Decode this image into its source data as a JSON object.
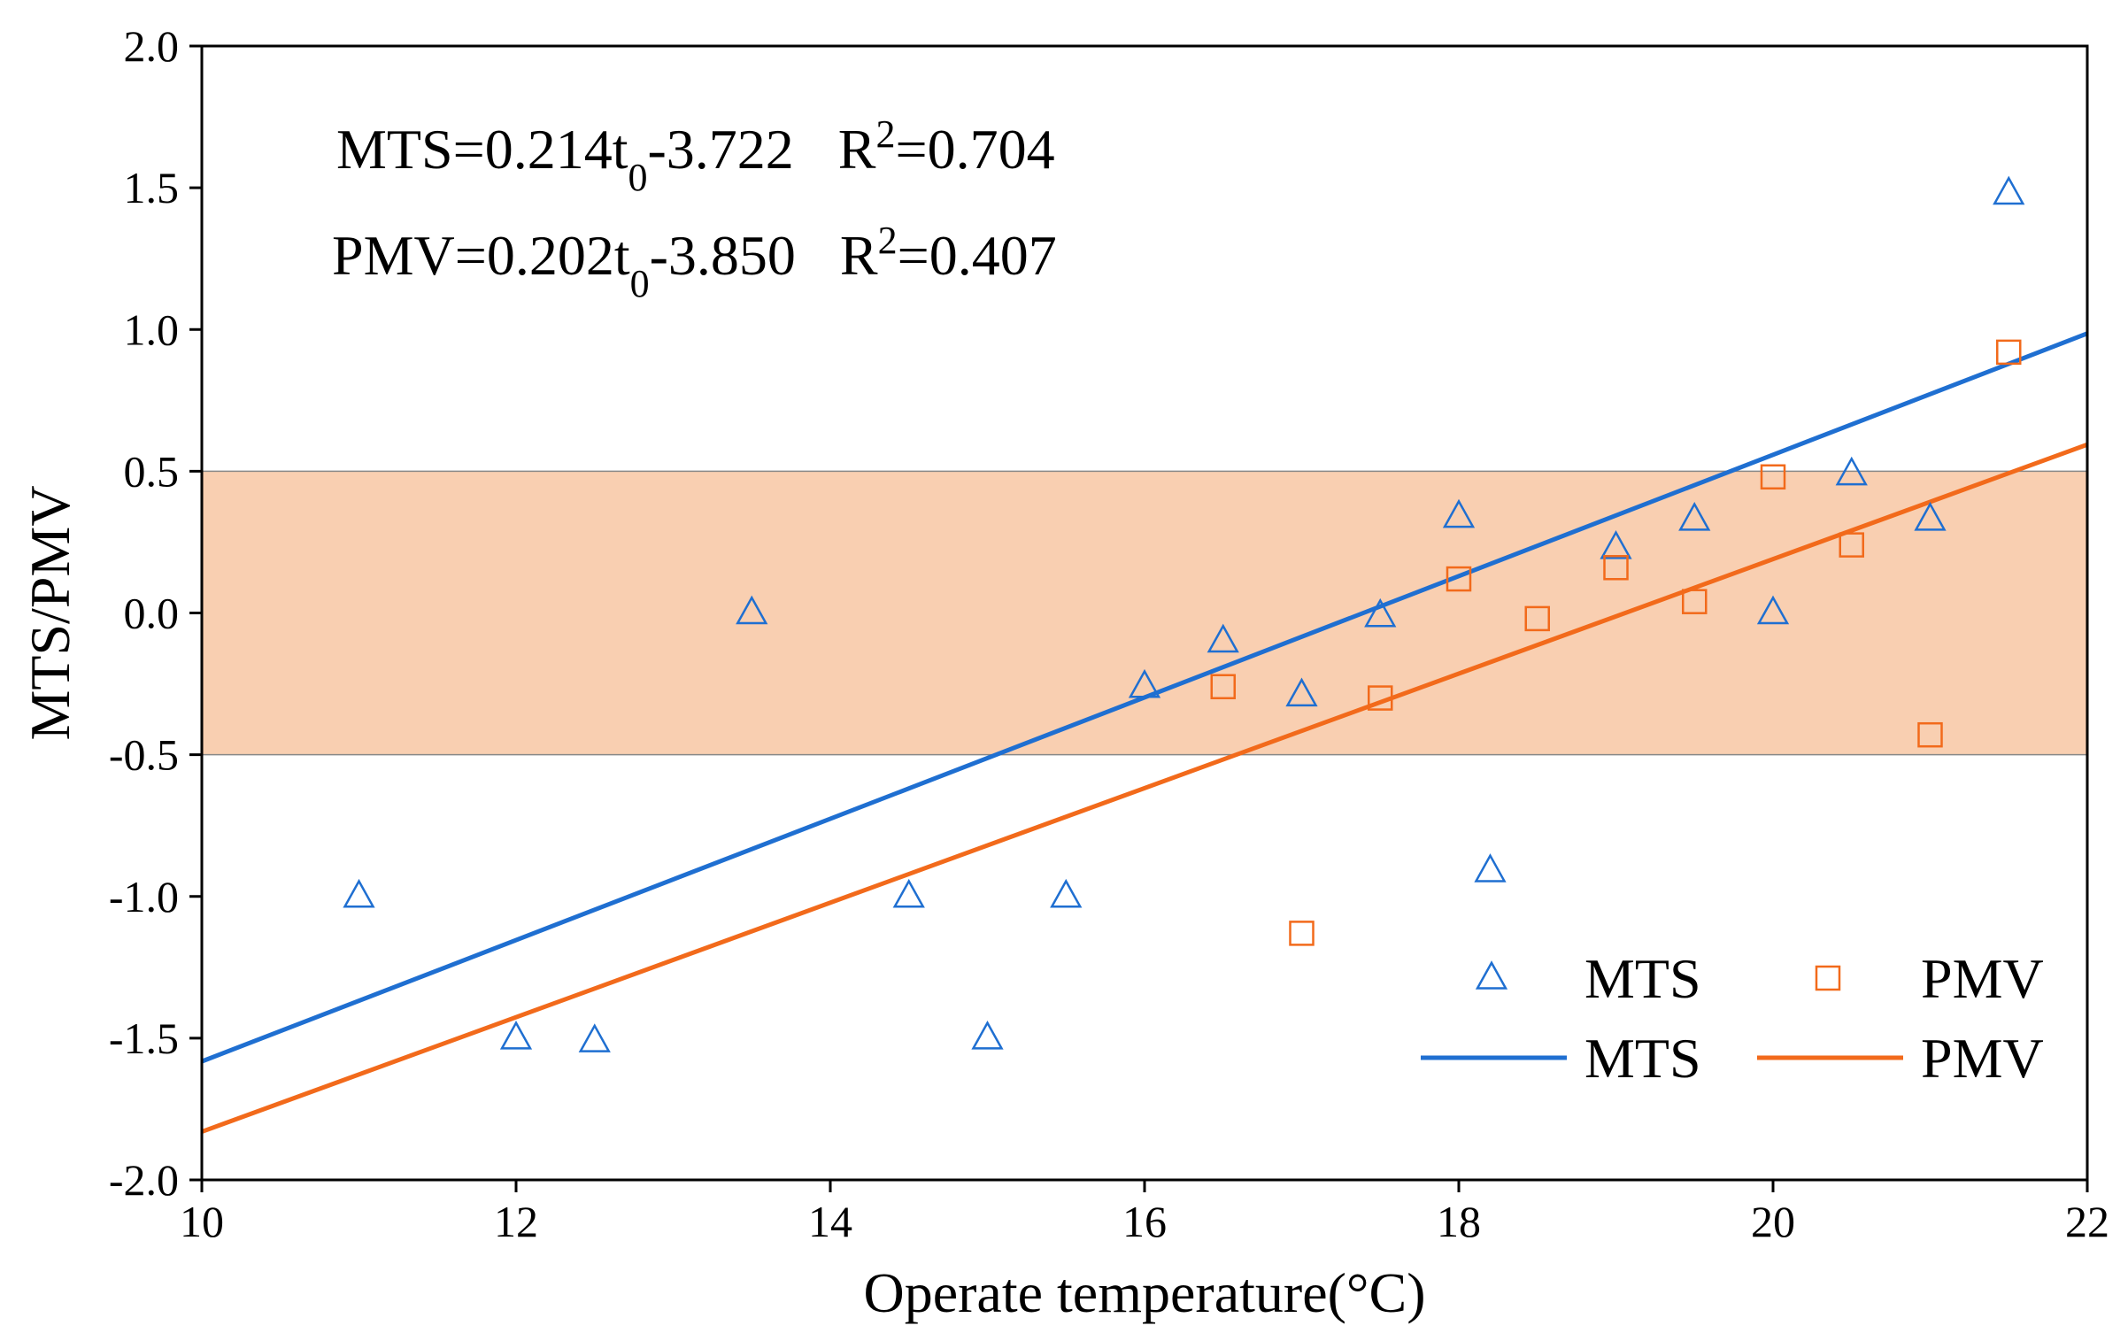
{
  "chart_data": {
    "type": "scatter",
    "xlabel": "Operate temperature(°C)",
    "ylabel": "MTS/PMV",
    "xlim": [
      10,
      22
    ],
    "ylim": [
      -2.0,
      2.0
    ],
    "x_ticks": [
      "10",
      "12",
      "14",
      "16",
      "18",
      "20",
      "22"
    ],
    "y_ticks": [
      "-2.0",
      "-1.5",
      "-1.0",
      "-0.5",
      "0.0",
      "0.5",
      "1.0",
      "1.5",
      "2.0"
    ],
    "comfort_band": {
      "y_min": -0.5,
      "y_max": 0.5,
      "color": "#f9cfb1"
    },
    "equations": [
      {
        "lhs": "MTS=0.214t",
        "sub": "0",
        "mid": "-3.722",
        "r": "R",
        "sup": "2",
        "rhs": "=0.704"
      },
      {
        "lhs": "PMV=0.202t",
        "sub": "0",
        "mid": "-3.850",
        "r": "R",
        "sup": "2",
        "rhs": "=0.407"
      }
    ],
    "series": [
      {
        "name": "MTS",
        "marker": "triangle",
        "color": "#1f6fd1",
        "points": [
          [
            11,
            -1.0
          ],
          [
            12,
            -1.5
          ],
          [
            12.5,
            -1.51
          ],
          [
            13.5,
            0.0
          ],
          [
            14.5,
            -1.0
          ],
          [
            15.0,
            -1.5
          ],
          [
            15.5,
            -1.0
          ],
          [
            16.0,
            -0.26
          ],
          [
            16.5,
            -0.1
          ],
          [
            17.0,
            -0.29
          ],
          [
            17.5,
            -0.01
          ],
          [
            18.0,
            0.34
          ],
          [
            18.2,
            -0.91
          ],
          [
            19.0,
            0.23
          ],
          [
            19.5,
            0.33
          ],
          [
            20.0,
            0.0
          ],
          [
            20.5,
            0.49
          ],
          [
            21.0,
            0.33
          ],
          [
            21.5,
            1.48
          ]
        ]
      },
      {
        "name": "PMV",
        "marker": "square",
        "color": "#f26a1b",
        "points": [
          [
            16.5,
            -0.26
          ],
          [
            17.0,
            -1.13
          ],
          [
            17.5,
            -0.3
          ],
          [
            18.0,
            0.12
          ],
          [
            18.5,
            -0.02
          ],
          [
            19.0,
            0.16
          ],
          [
            19.5,
            0.04
          ],
          [
            20.0,
            0.48
          ],
          [
            20.5,
            0.24
          ],
          [
            21.0,
            -0.43
          ],
          [
            21.5,
            0.92
          ]
        ]
      }
    ],
    "fit_lines": [
      {
        "name": "MTS",
        "color": "#1f6fd1",
        "slope": 0.214,
        "intercept": -3.722
      },
      {
        "name": "PMV",
        "color": "#f26a1b",
        "slope": 0.202,
        "intercept": -3.85
      }
    ],
    "legend": {
      "placement": "bottom-right",
      "entries": [
        {
          "label": "MTS",
          "kind": "triangle",
          "color": "#1f6fd1"
        },
        {
          "label": "PMV",
          "kind": "square",
          "color": "#f26a1b"
        },
        {
          "label": "MTS",
          "kind": "line",
          "color": "#1f6fd1"
        },
        {
          "label": "PMV",
          "kind": "line",
          "color": "#f26a1b"
        }
      ]
    }
  }
}
